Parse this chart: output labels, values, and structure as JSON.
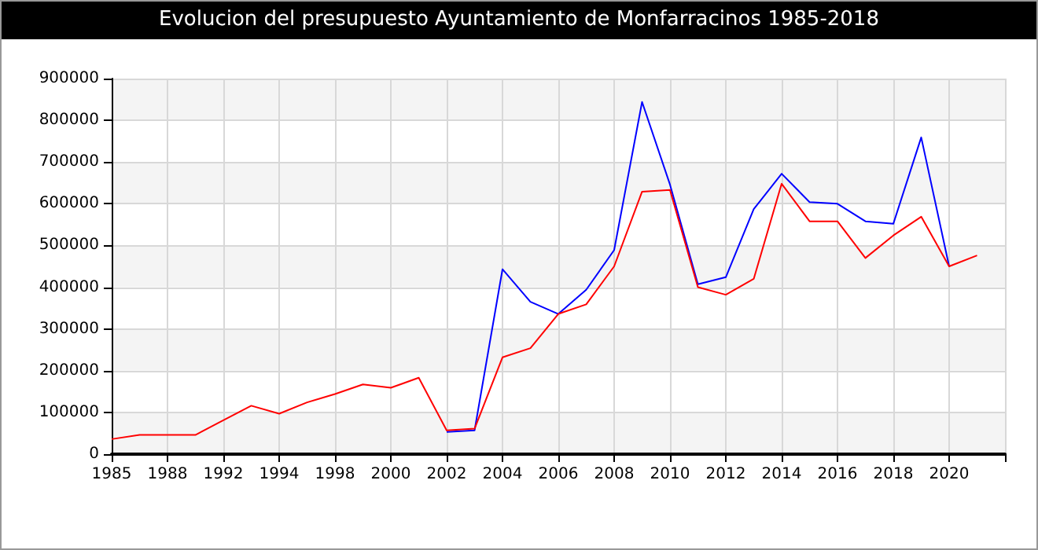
{
  "chart_data": {
    "type": "line",
    "title": "Evolucion del presupuesto Ayuntamiento de Monfarracinos 1985-2018",
    "categories": [
      "1985",
      null,
      "1988",
      null,
      "1992",
      null,
      "1994",
      null,
      "1998",
      null,
      "2000",
      null,
      "2002",
      null,
      "2004",
      null,
      "2006",
      null,
      "2008",
      null,
      "2010",
      null,
      "2012",
      null,
      "2014",
      null,
      "2016",
      null,
      "2018",
      null,
      "2020",
      null,
      null
    ],
    "series": [
      {
        "color": "#0000ff",
        "values": [
          null,
          null,
          null,
          null,
          null,
          null,
          null,
          null,
          null,
          null,
          null,
          null,
          53000,
          57000,
          443000,
          365000,
          336000,
          394000,
          489000,
          844000,
          646000,
          407000,
          424000,
          587000,
          672000,
          604000,
          600000,
          558000,
          552000,
          759000,
          450000,
          null,
          null
        ]
      },
      {
        "color": "#ff0000",
        "values": [
          36000,
          46000,
          46000,
          46000,
          81000,
          116000,
          97000,
          124000,
          144000,
          167000,
          159000,
          183000,
          57000,
          61000,
          232000,
          254000,
          336000,
          359000,
          450000,
          629000,
          633000,
          400000,
          382000,
          420000,
          648000,
          558000,
          558000,
          470000,
          524000,
          569000,
          450000,
          476000,
          null
        ]
      }
    ],
    "ylim": [
      0,
      900000
    ],
    "yticks": [
      0,
      100000,
      200000,
      300000,
      400000,
      500000,
      600000,
      700000,
      800000,
      900000
    ],
    "grid": true,
    "marker": "none",
    "line_style": "solid"
  }
}
